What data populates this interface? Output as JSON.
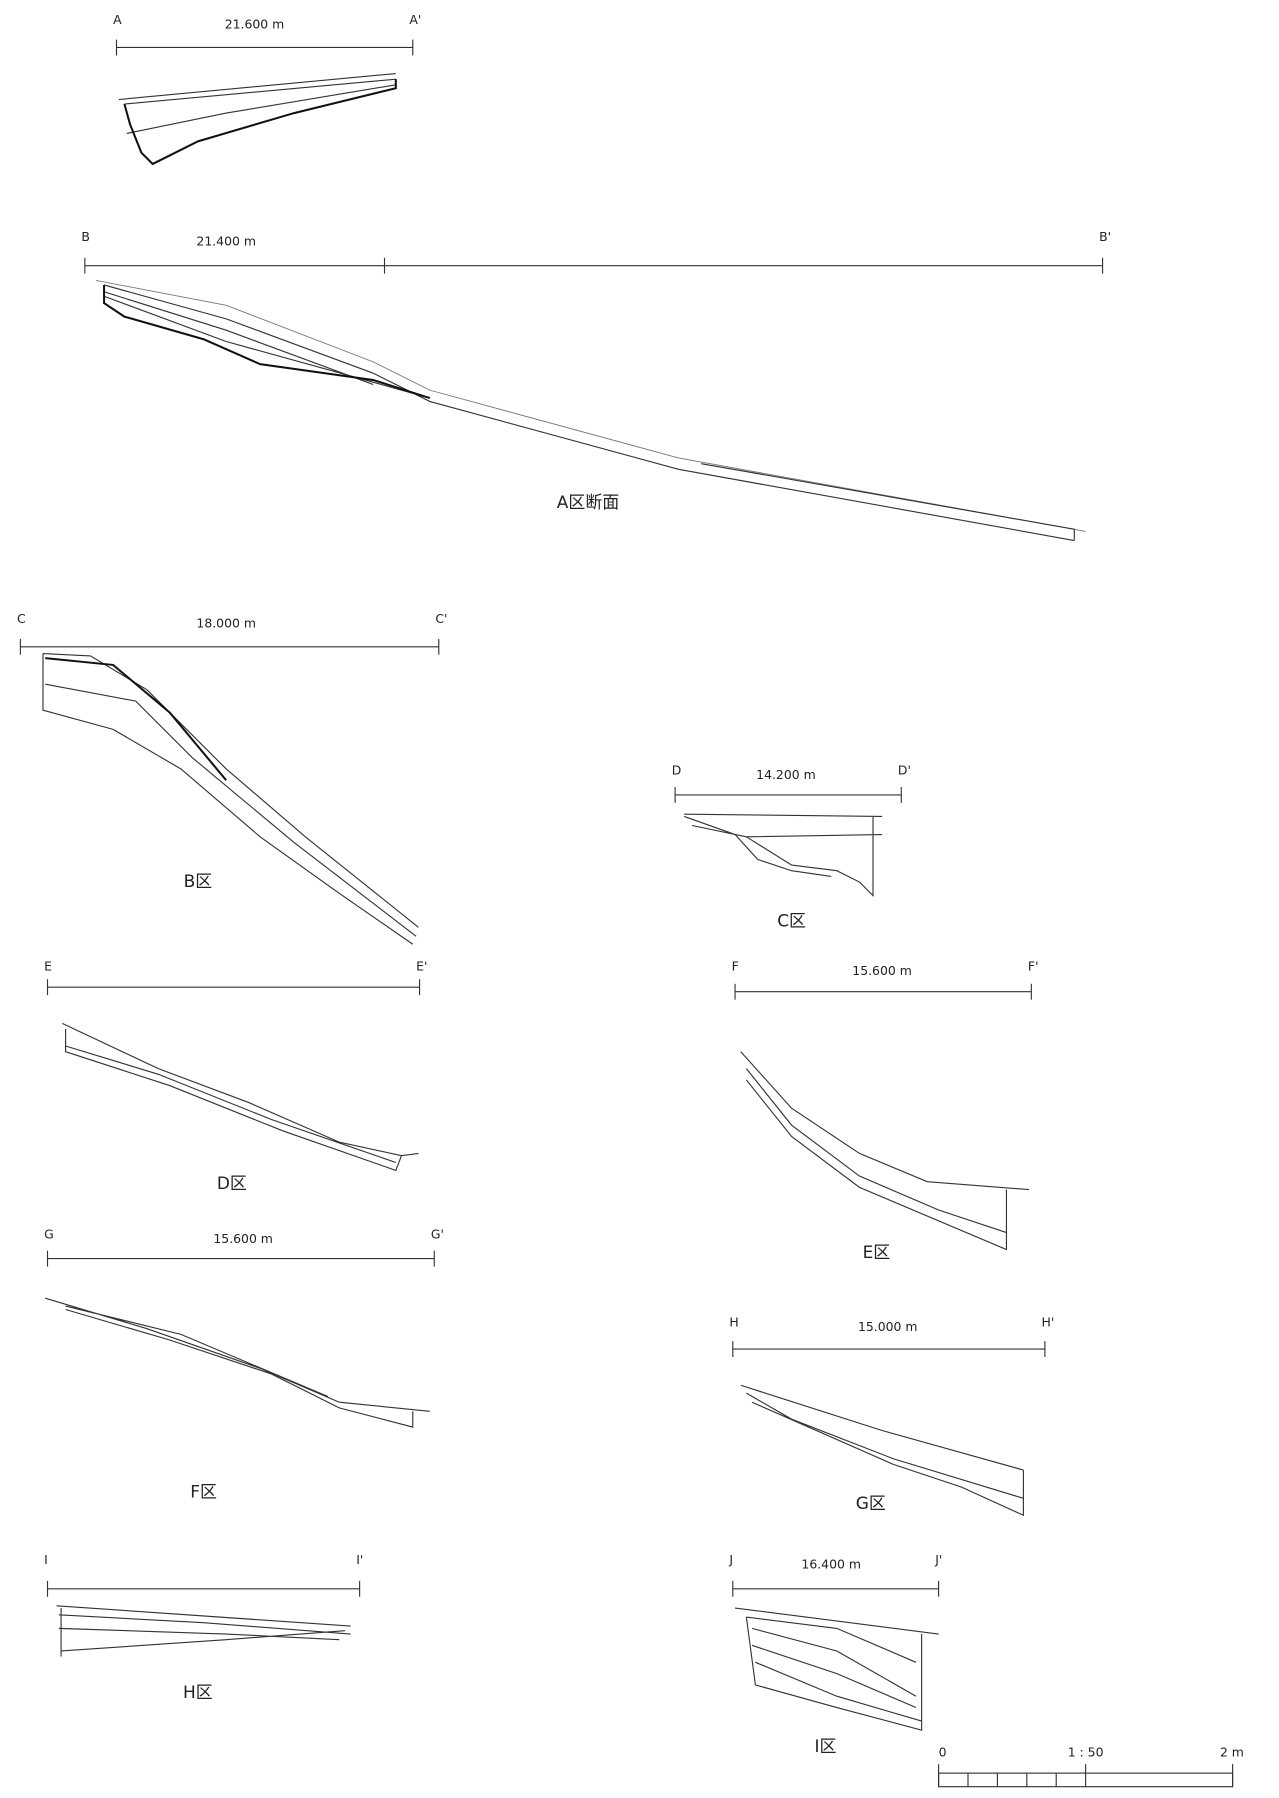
{
  "sections": [
    {
      "start": "A",
      "end": "A'",
      "distance": "21.600 m"
    },
    {
      "start": "B",
      "end": "B'",
      "distance": "21.400 m",
      "zone": "A区断面"
    },
    {
      "start": "C",
      "end": "C'",
      "distance": "18.000 m",
      "zone": "B区"
    },
    {
      "start": "D",
      "end": "D'",
      "distance": "14.200 m",
      "zone": "C区"
    },
    {
      "start": "E",
      "end": "E'",
      "zone": "D区"
    },
    {
      "start": "F",
      "end": "F'",
      "distance": "15.600 m",
      "zone": "E区"
    },
    {
      "start": "G",
      "end": "G'",
      "distance": "15.600 m",
      "zone": "F区"
    },
    {
      "start": "H",
      "end": "H'",
      "distance": "15.000 m",
      "zone": "G区"
    },
    {
      "start": "I",
      "end": "I'",
      "zone": "H区"
    },
    {
      "start": "J",
      "end": "J'",
      "distance": "16.400 m",
      "zone": "I区"
    }
  ],
  "scale": {
    "zero": "0",
    "ratio": "1 : 50",
    "length": "2 m"
  }
}
